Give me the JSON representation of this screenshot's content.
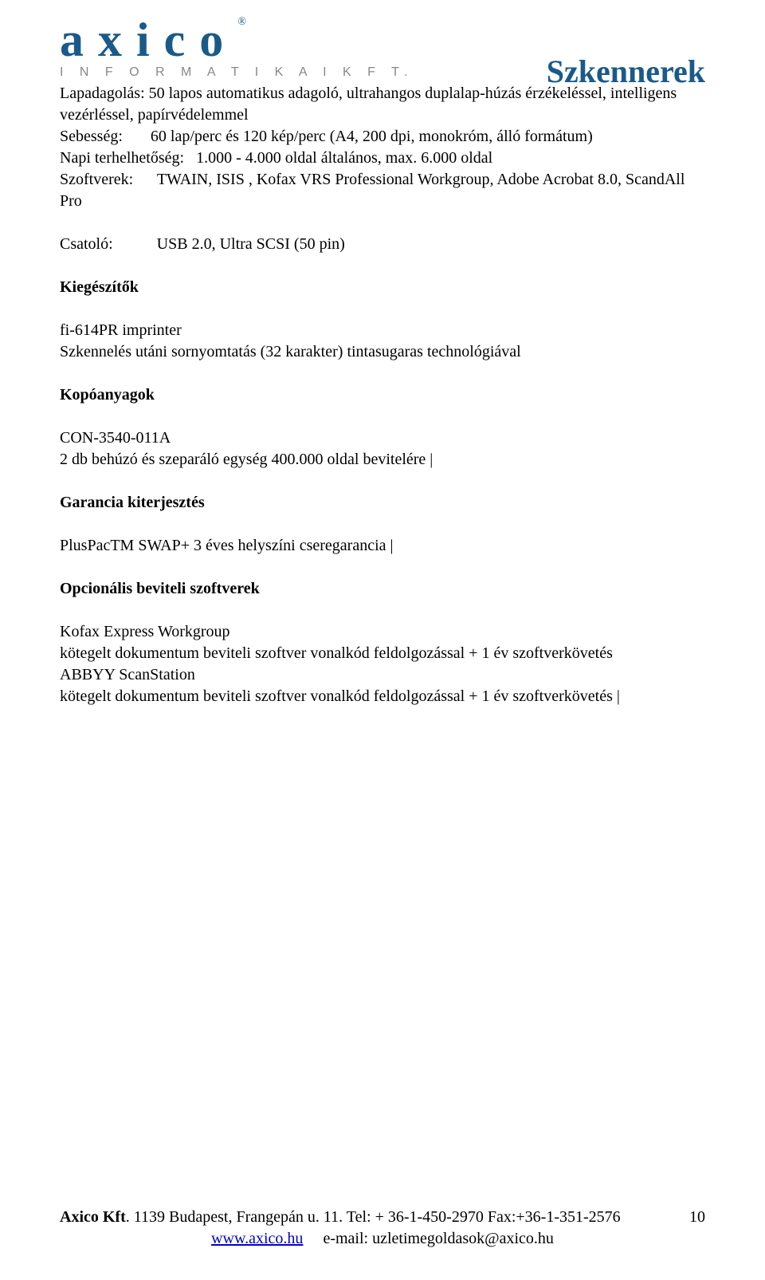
{
  "logo": {
    "main": "axico",
    "reg": "®",
    "sub": "I N F O R M A T I K A I   K F T."
  },
  "title": "Szkennerek",
  "specs": {
    "lapadagolas_label": "Lapadagolás:",
    "lapadagolas_value": " 50 lapos automatikus adagoló, ultrahangos duplalap-húzás érzékeléssel, intelligens vezérléssel, papírvédelemmel",
    "sebesseg_label": "Sebesség:",
    "sebesseg_value": "       60 lap/perc és 120 kép/perc (A4, 200 dpi, monokróm, álló formátum)",
    "napi_label": "Napi terhelhetőség:",
    "napi_value": "   1.000 - 4.000 oldal általános, max. 6.000 oldal",
    "szoftverek_label": "Szoftverek:",
    "szoftverek_value": "      TWAIN, ISIS , Kofax VRS Professional Workgroup, Adobe Acrobat 8.0, ScandAll Pro",
    "csatolo_label": "Csatoló:",
    "csatolo_value": "           USB 2.0, Ultra SCSI (50 pin)"
  },
  "sections": {
    "kiegeszitok": "Kiegészítők",
    "kieg1": "fi-614PR imprinter",
    "kieg1_desc": " Szkennelés utáni sornyomtatás (32 karakter) tintasugaras technológiával",
    "kopoanyagok": "Kopóanyagok",
    "kopo1": "CON-3540-011A",
    "kopo1_desc": " 2 db behúzó és szeparáló egység 400.000 oldal bevitelére |",
    "garancia": "Garancia kiterjesztés",
    "gar1": "PlusPacTM SWAP+ 3 éves helyszíni cseregarancia |",
    "opcionalis": "Opcionális beviteli szoftverek",
    "opt1": "Kofax Express Workgroup",
    "opt1_desc": " kötegelt dokumentum beviteli szoftver vonalkód feldolgozással + 1 év szoftverkövetés",
    "opt2": "ABBYY ScanStation",
    "opt2_desc": " kötegelt dokumentum beviteli szoftver vonalkód feldolgozással + 1 év szoftverkövetés |"
  },
  "footer": {
    "company": "Axico Kft",
    "addr": ". 1139 Budapest, Frangepán u. 11.  Tel: + 36-1-450-2970 Fax:+36-1-351-2576",
    "link": "www.axico.hu",
    "email": "     e-mail: uzletimegoldasok@axico.hu",
    "page": "10"
  }
}
